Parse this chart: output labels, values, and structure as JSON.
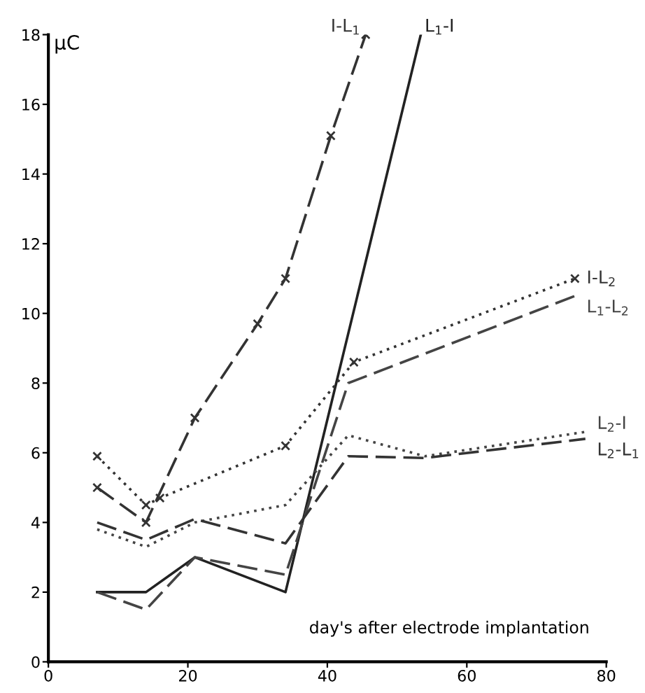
{
  "chart_data": {
    "type": "line",
    "xlabel": "day's after electrode implantation",
    "ylabel": "μC",
    "xlim": [
      0,
      80
    ],
    "ylim": [
      0,
      18
    ],
    "xticks": [
      0,
      20,
      40,
      60,
      80
    ],
    "yticks": [
      0,
      2,
      4,
      6,
      8,
      10,
      12,
      14,
      16,
      18
    ],
    "grid": false,
    "legend": false,
    "series": [
      {
        "name": "I-L$_{1}$",
        "color": "#333333",
        "line_style": "dashed",
        "marker": "cross",
        "x": [
          7,
          14,
          21,
          30,
          34,
          40.5,
          45.5
        ],
        "values": [
          5,
          4,
          7,
          9.7,
          11,
          15.1,
          18
        ]
      },
      {
        "name": "L$_{1}$-I",
        "color": "#222222",
        "line_style": "solid",
        "marker": "none",
        "x": [
          7,
          14,
          21,
          34,
          53.4
        ],
        "values": [
          2,
          2,
          3,
          2,
          18
        ]
      },
      {
        "name": "I-L$_{2}$",
        "color": "#333333",
        "line_style": "dotted",
        "marker": "cross",
        "x": [
          7,
          14,
          16,
          34,
          43.8,
          75.5
        ],
        "values": [
          5.9,
          4.5,
          4.7,
          6.2,
          8.6,
          11
        ]
      },
      {
        "name": "L$_{1}$-L$_{2}$",
        "color": "#444444",
        "line_style": "dashed",
        "marker": "none",
        "x": [
          7,
          14,
          21,
          34,
          43,
          75.5
        ],
        "values": [
          2,
          1.5,
          3,
          2.5,
          8,
          10.5
        ]
      },
      {
        "name": "L$_{2}$-I",
        "color": "#444444",
        "line_style": "dotted",
        "marker": "none",
        "x": [
          7,
          14,
          21,
          34,
          43,
          54,
          77
        ],
        "values": [
          3.8,
          3.3,
          4,
          4.5,
          6.5,
          5.9,
          6.6
        ]
      },
      {
        "name": "L$_{2}$-L$_{1}$",
        "color": "#333333",
        "line_style": "dashed",
        "marker": "none",
        "x": [
          7,
          14,
          21,
          34,
          43,
          54,
          77
        ],
        "values": [
          4,
          3.5,
          4.1,
          3.4,
          5.9,
          5.85,
          6.4
        ]
      }
    ]
  }
}
